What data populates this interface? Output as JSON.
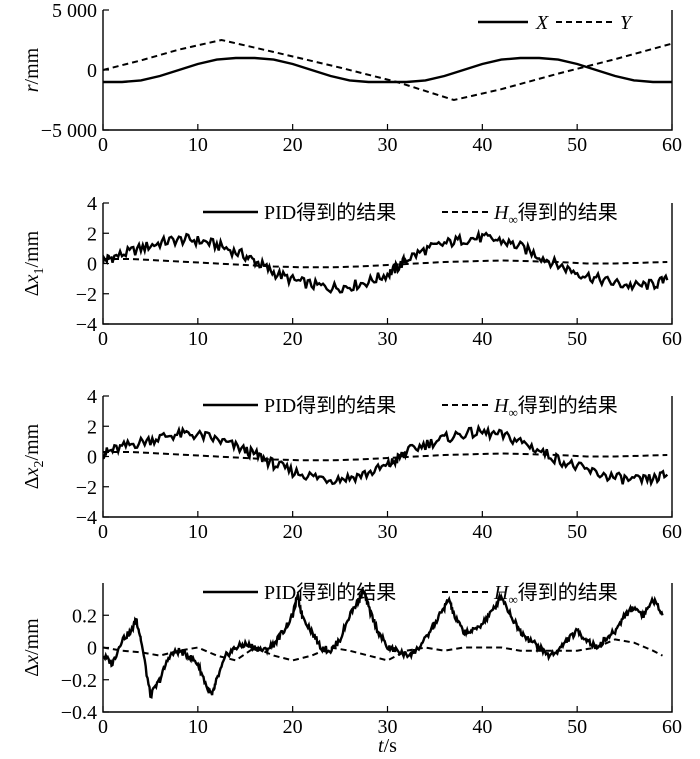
{
  "chart_data": [
    {
      "type": "line",
      "ylabel": "r/mm",
      "xlim": [
        0,
        60
      ],
      "ylim": [
        -5000,
        5000
      ],
      "xticks": [
        "0",
        "10",
        "20",
        "30",
        "40",
        "50",
        "60"
      ],
      "yticks": [
        "5 000",
        "0",
        "−5 000"
      ],
      "ytick_values": [
        5000,
        0,
        -5000
      ],
      "legend": [
        "X",
        "Y"
      ],
      "series": [
        {
          "name": "X",
          "style": "solid",
          "x": [
            0,
            2,
            4,
            6,
            8,
            10,
            12,
            14,
            16,
            18,
            20,
            22,
            24,
            26,
            28,
            30,
            32,
            34,
            36,
            38,
            40,
            42,
            44,
            46,
            48,
            50,
            52,
            54,
            56,
            58,
            60
          ],
          "y": [
            -1000,
            -1000,
            -866,
            -500,
            0,
            500,
            866,
            1000,
            1000,
            866,
            500,
            0,
            -500,
            -866,
            -1000,
            -1000,
            -1000,
            -866,
            -500,
            0,
            500,
            866,
            1000,
            1000,
            866,
            500,
            0,
            -500,
            -866,
            -1000,
            -1000
          ]
        },
        {
          "name": "Y",
          "style": "dashed",
          "x": [
            0,
            4,
            8,
            12.5,
            18,
            25,
            31,
            37,
            42,
            48,
            54,
            60
          ],
          "y": [
            0,
            800,
            1700,
            2500,
            1500,
            200,
            -1000,
            -2500,
            -1600,
            -300,
            900,
            2200
          ]
        }
      ]
    },
    {
      "type": "line",
      "ylabel_main": "Δx",
      "ylabel_sub": "1",
      "ylabel_unit": "/mm",
      "xlim": [
        0,
        60
      ],
      "ylim": [
        -4,
        4
      ],
      "xticks": [
        "0",
        "10",
        "20",
        "30",
        "40",
        "50",
        "60"
      ],
      "yticks": [
        "4",
        "2",
        "0",
        "−2",
        "−4"
      ],
      "ytick_values": [
        4,
        2,
        0,
        -2,
        -4
      ],
      "legend": [
        "PID得到的结果",
        "H∞得到的结果"
      ],
      "series": [
        {
          "name": "PID得到的结果",
          "style": "solid",
          "x": [
            0,
            1,
            3,
            5,
            7,
            9,
            11,
            13,
            15,
            16.5,
            18,
            20,
            22,
            24,
            26,
            28,
            30,
            31,
            32,
            34,
            36,
            38,
            40,
            42,
            44,
            46,
            48,
            50,
            52,
            54,
            56,
            58,
            59.5
          ],
          "y": [
            0.2,
            0.4,
            0.8,
            1.2,
            1.5,
            1.6,
            1.4,
            1.0,
            0.5,
            0.0,
            -0.6,
            -1.1,
            -1.4,
            -1.6,
            -1.5,
            -1.2,
            -0.7,
            -0.3,
            0.3,
            0.9,
            1.3,
            1.6,
            1.7,
            1.5,
            1.1,
            0.5,
            -0.1,
            -0.6,
            -1.0,
            -1.3,
            -1.5,
            -1.4,
            -1.1
          ]
        },
        {
          "name": "H∞得到的结果",
          "style": "dashed",
          "x": [
            0,
            3,
            6,
            9,
            12,
            15,
            18,
            21,
            24,
            27,
            30,
            33,
            36,
            39,
            42,
            45,
            48,
            51,
            54,
            57,
            59.5
          ],
          "y": [
            0.3,
            0.3,
            0.2,
            0.1,
            0.0,
            -0.1,
            -0.2,
            -0.25,
            -0.25,
            -0.2,
            -0.1,
            0.0,
            0.1,
            0.15,
            0.2,
            0.15,
            0.1,
            0.0,
            0.0,
            0.05,
            0.1
          ]
        }
      ]
    },
    {
      "type": "line",
      "ylabel_main": "Δx",
      "ylabel_sub": "2",
      "ylabel_unit": "/mm",
      "xlim": [
        0,
        60
      ],
      "ylim": [
        -4,
        4
      ],
      "xticks": [
        "0",
        "10",
        "20",
        "30",
        "40",
        "50",
        "60"
      ],
      "yticks": [
        "4",
        "2",
        "0",
        "−2",
        "−4"
      ],
      "ytick_values": [
        4,
        2,
        0,
        -2,
        -4
      ],
      "legend": [
        "PID得到的结果",
        "H∞得到的结果"
      ],
      "series": [
        {
          "name": "PID得到的结果",
          "style": "solid",
          "x": [
            0,
            1,
            3,
            5,
            7,
            9,
            11,
            13,
            15,
            16.5,
            18,
            20,
            22,
            24,
            26,
            28,
            30,
            31,
            32,
            34,
            36,
            38,
            40,
            42,
            44,
            46,
            48,
            50,
            52,
            54,
            56,
            58,
            59.5
          ],
          "y": [
            0.2,
            0.4,
            0.8,
            1.1,
            1.4,
            1.5,
            1.3,
            0.9,
            0.4,
            0.0,
            -0.5,
            -1.0,
            -1.3,
            -1.5,
            -1.4,
            -1.1,
            -0.6,
            -0.2,
            0.3,
            0.8,
            1.2,
            1.5,
            1.6,
            1.4,
            1.0,
            0.4,
            -0.2,
            -0.7,
            -1.1,
            -1.4,
            -1.6,
            -1.5,
            -1.2
          ]
        },
        {
          "name": "H∞得到的结果",
          "style": "dashed",
          "x": [
            0,
            3,
            6,
            9,
            12,
            15,
            18,
            21,
            24,
            27,
            30,
            33,
            36,
            39,
            42,
            45,
            48,
            51,
            54,
            57,
            59.5
          ],
          "y": [
            0.3,
            0.3,
            0.2,
            0.1,
            0.0,
            -0.1,
            -0.2,
            -0.25,
            -0.25,
            -0.2,
            -0.1,
            0.0,
            0.1,
            0.15,
            0.2,
            0.15,
            0.1,
            0.0,
            0.0,
            0.05,
            0.1
          ]
        }
      ]
    },
    {
      "type": "line",
      "ylabel_main": "Δx",
      "ylabel_sub": "",
      "ylabel_unit": "/mm",
      "xlabel": "t/s",
      "xlim": [
        0,
        60
      ],
      "ylim": [
        -0.4,
        0.4
      ],
      "xticks": [
        "0",
        "10",
        "20",
        "30",
        "40",
        "50",
        "60"
      ],
      "yticks": [
        "0.2",
        "0",
        "−0.2",
        "−0.4"
      ],
      "ytick_values": [
        0.2,
        0,
        -0.2,
        -0.4
      ],
      "legend": [
        "PID得到的结果",
        "H∞得到的结果"
      ],
      "series": [
        {
          "name": "PID得到的结果",
          "style": "solid",
          "x": [
            0,
            1,
            2,
            3,
            3.5,
            4,
            5,
            6,
            7,
            8,
            9,
            10,
            11,
            11.5,
            12,
            13,
            14,
            15,
            16,
            17,
            18,
            19,
            20,
            20.5,
            21,
            22,
            23,
            24,
            25,
            26,
            27,
            27.5,
            28,
            29,
            30,
            31,
            32,
            33,
            34,
            35,
            36,
            36.5,
            37,
            38,
            39,
            40,
            41,
            42,
            43,
            44,
            45,
            46,
            47,
            48,
            49,
            50,
            51,
            52,
            53,
            54,
            55,
            56,
            57,
            58,
            59
          ],
          "y": [
            -0.05,
            -0.1,
            0.05,
            0.1,
            0.18,
            0.05,
            -0.3,
            -0.2,
            -0.05,
            -0.02,
            -0.05,
            -0.1,
            -0.25,
            -0.3,
            -0.2,
            -0.05,
            0.0,
            0.02,
            0.0,
            -0.02,
            0.02,
            0.1,
            0.2,
            0.32,
            0.2,
            0.1,
            0.0,
            -0.02,
            0.05,
            0.2,
            0.3,
            0.35,
            0.25,
            0.1,
            0.0,
            -0.02,
            -0.05,
            -0.02,
            0.05,
            0.15,
            0.25,
            0.3,
            0.2,
            0.1,
            0.1,
            0.15,
            0.22,
            0.32,
            0.2,
            0.1,
            0.05,
            0.0,
            -0.05,
            -0.02,
            0.05,
            0.1,
            0.05,
            0.0,
            0.05,
            0.1,
            0.2,
            0.25,
            0.2,
            0.3,
            0.2
          ]
        },
        {
          "name": "H∞得到的结果",
          "style": "dashed",
          "x": [
            0,
            2,
            4,
            6,
            8,
            10,
            12,
            14,
            16,
            18,
            20,
            22,
            24,
            26,
            28,
            30,
            32,
            34,
            36,
            38,
            40,
            42,
            44,
            46,
            48,
            50,
            52,
            54,
            56,
            58,
            59
          ],
          "y": [
            0.0,
            -0.02,
            -0.03,
            -0.05,
            -0.02,
            0.0,
            -0.05,
            -0.08,
            0.0,
            -0.05,
            -0.08,
            -0.05,
            0.0,
            -0.02,
            -0.05,
            -0.08,
            -0.02,
            0.0,
            -0.02,
            0.0,
            0.0,
            0.0,
            -0.02,
            -0.02,
            -0.02,
            -0.02,
            0.0,
            0.05,
            0.03,
            -0.02,
            -0.05
          ]
        }
      ]
    }
  ]
}
